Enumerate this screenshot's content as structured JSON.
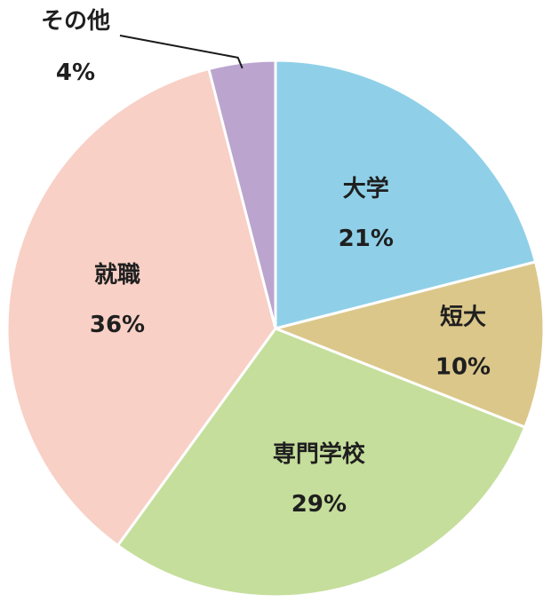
{
  "chart_data": {
    "type": "pie",
    "title": "",
    "start_angle_deg": 0,
    "direction": "clockwise",
    "slices": [
      {
        "label": "大学",
        "value": 21,
        "value_label": "21%",
        "color": "#8fd0e8"
      },
      {
        "label": "短大",
        "value": 10,
        "value_label": "10%",
        "color": "#dcc78b"
      },
      {
        "label": "専門学校",
        "value": 29,
        "value_label": "29%",
        "color": "#c5de9c"
      },
      {
        "label": "就職",
        "value": 36,
        "value_label": "36%",
        "color": "#f8d0c6"
      },
      {
        "label": "その他",
        "value": 4,
        "value_label": "4%",
        "color": "#bba5ce"
      }
    ],
    "legend": "none"
  }
}
